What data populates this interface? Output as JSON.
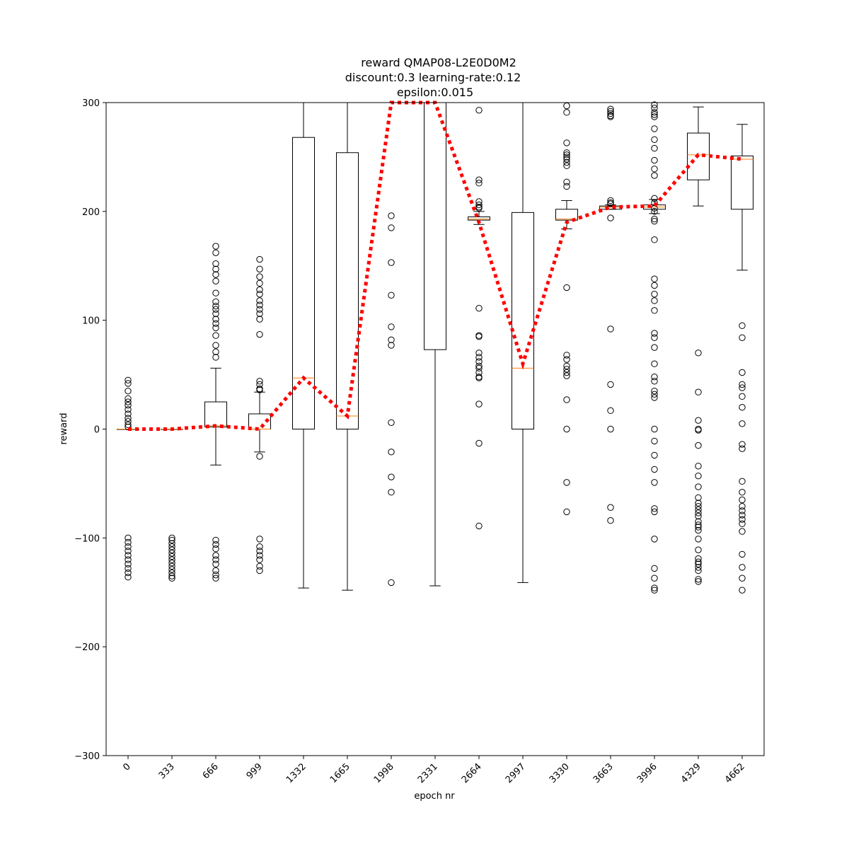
{
  "chart_data": {
    "type": "box",
    "title": [
      "reward QMAP08-L2E0D0M2",
      "discount:0.3 learning-rate:0.12",
      "epsilon:0.015"
    ],
    "xlabel": "epoch nr",
    "ylabel": "reward",
    "ylim": [
      -300,
      300
    ],
    "yticks": [
      -300,
      -200,
      -100,
      0,
      100,
      200,
      300
    ],
    "categories": [
      "0",
      "333",
      "666",
      "999",
      "1332",
      "1665",
      "1998",
      "2331",
      "2664",
      "2997",
      "3330",
      "3663",
      "3996",
      "4329",
      "4662"
    ],
    "boxes": [
      {
        "q1": 0,
        "median": 0,
        "q3": 0,
        "whislo": 0,
        "whishi": 0,
        "fliers": [
          45,
          42,
          35,
          28,
          25,
          22,
          18,
          14,
          10,
          7,
          4,
          2,
          -100,
          -104,
          -108,
          -112,
          -116,
          -120,
          -124,
          -128,
          -132,
          -136
        ]
      },
      {
        "q1": 0,
        "median": 0,
        "q3": 0,
        "whislo": 0,
        "whishi": 0,
        "fliers": [
          -100,
          -102,
          -105,
          -108,
          -111,
          -114,
          -117,
          -120,
          -123,
          -126,
          -129,
          -132,
          -135,
          -137
        ]
      },
      {
        "q1": 2,
        "median": 3,
        "q3": 25,
        "whislo": -33,
        "whishi": 56,
        "fliers": [
          168,
          162,
          152,
          147,
          142,
          136,
          125,
          117,
          113,
          110,
          106,
          101,
          97,
          93,
          86,
          77,
          71,
          66,
          -102,
          -106,
          -110,
          -116,
          -120,
          -124,
          -130,
          -134,
          -137
        ]
      },
      {
        "q1": 0,
        "median": 0,
        "q3": 14,
        "whislo": -21,
        "whishi": 34,
        "fliers": [
          156,
          147,
          140,
          134,
          128,
          124,
          118,
          114,
          110,
          106,
          101,
          87,
          44,
          41,
          37,
          36,
          -25,
          -101,
          -108,
          -112,
          -116,
          -120,
          -126,
          -130
        ]
      },
      {
        "q1": 0,
        "median": 47,
        "q3": 268,
        "whislo": -146,
        "whishi": 300,
        "fliers": []
      },
      {
        "q1": 0,
        "median": 12,
        "q3": 254,
        "whislo": -148,
        "whishi": 300,
        "fliers": []
      },
      {
        "q1": null,
        "median": null,
        "q3": null,
        "whislo": null,
        "whishi": null,
        "fliers": [
          196,
          185,
          153,
          123,
          94,
          82,
          77,
          6,
          -21,
          -44,
          -58,
          -141
        ]
      },
      {
        "q1": 73,
        "median": null,
        "q3": 300,
        "whislo": -144,
        "whishi": 300,
        "fliers": []
      },
      {
        "q1": 192,
        "median": 193,
        "q3": 195,
        "whislo": 188,
        "whishi": 200,
        "fliers": [
          293,
          229,
          226,
          209,
          206,
          204,
          203,
          111,
          86,
          85,
          70,
          66,
          62,
          58,
          56,
          52,
          48,
          47,
          23,
          -13,
          -89
        ]
      },
      {
        "q1": 0,
        "median": 56,
        "q3": 199,
        "whislo": -141,
        "whishi": 300,
        "fliers": []
      },
      {
        "q1": 192,
        "median": 193,
        "q3": 202,
        "whislo": 184,
        "whishi": 210,
        "fliers": [
          297,
          291,
          263,
          254,
          252,
          250,
          248,
          245,
          242,
          227,
          223,
          130,
          68,
          64,
          58,
          55,
          52,
          49,
          27,
          0,
          -49,
          -76
        ]
      },
      {
        "q1": 202,
        "median": 204,
        "q3": 205,
        "whislo": 202,
        "whishi": 206,
        "fliers": [
          294,
          292,
          290,
          288,
          287,
          210,
          208,
          207,
          194,
          92,
          41,
          17,
          0,
          -72,
          -84
        ]
      },
      {
        "q1": 202,
        "median": 204,
        "q3": 206,
        "whislo": 198,
        "whishi": 211,
        "fliers": [
          298,
          295,
          291,
          289,
          287,
          276,
          266,
          258,
          247,
          239,
          233,
          212,
          208,
          203,
          200,
          193,
          191,
          174,
          138,
          132,
          124,
          118,
          109,
          88,
          84,
          75,
          60,
          48,
          44,
          35,
          32,
          29,
          0,
          -11,
          -24,
          -37,
          -49,
          -73,
          -76,
          -101,
          -128,
          -137,
          -146,
          -148
        ]
      },
      {
        "q1": 229,
        "median": 252,
        "q3": 272,
        "whislo": 205,
        "whishi": 296,
        "fliers": [
          70,
          34,
          8,
          0,
          -1,
          -15,
          -34,
          -43,
          -53,
          -63,
          -68,
          -71,
          -74,
          -77,
          -80,
          -85,
          -88,
          -90,
          -93,
          -101,
          -111,
          -119,
          -122,
          -124,
          -127,
          -130,
          -138,
          -140
        ]
      },
      {
        "q1": 202,
        "median": 248,
        "q3": 251,
        "whislo": 146,
        "whishi": 280,
        "fliers": [
          95,
          84,
          52,
          41,
          38,
          30,
          20,
          5,
          -14,
          -18,
          -48,
          -58,
          -65,
          -71,
          -75,
          -79,
          -83,
          -87,
          -94,
          -115,
          -127,
          -137,
          -148
        ]
      }
    ],
    "mean_line": {
      "color": "#ff0000",
      "style": "dotted",
      "values": [
        0,
        0,
        3,
        0,
        47,
        12,
        300,
        300,
        190,
        60,
        190,
        204,
        205,
        252,
        248
      ],
      "clip_to_ylim": true
    },
    "colors": {
      "box": "#000000",
      "median": "#ff7f0e",
      "flier": "#000000",
      "mean": "#ff0000"
    }
  }
}
